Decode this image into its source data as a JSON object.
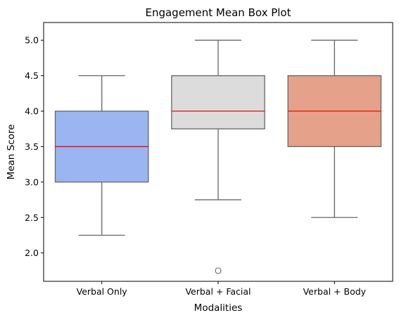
{
  "chart_data": {
    "type": "box",
    "title": "Engagement Mean Box Plot",
    "xlabel": "Modalities",
    "ylabel": "Mean Score",
    "ylim": [
      1.6,
      5.25
    ],
    "yticks": [
      2.0,
      2.5,
      3.0,
      3.5,
      4.0,
      4.5,
      5.0
    ],
    "ytick_labels": [
      "2.0",
      "2.5",
      "3.0",
      "3.5",
      "4.0",
      "4.5",
      "5.0"
    ],
    "grid": false,
    "categories": [
      "Verbal Only",
      "Verbal + Facial",
      "Verbal + Body"
    ],
    "boxes": [
      {
        "category": "Verbal Only",
        "whisker_low": 2.25,
        "q1": 3.0,
        "median": 3.5,
        "q3": 4.0,
        "whisker_high": 4.5,
        "outliers": [],
        "color": "#9ab5f1"
      },
      {
        "category": "Verbal + Facial",
        "whisker_low": 2.75,
        "q1": 3.75,
        "median": 4.0,
        "q3": 4.5,
        "whisker_high": 5.0,
        "outliers": [
          1.75
        ],
        "color": "#dcdcdc"
      },
      {
        "category": "Verbal + Body",
        "whisker_low": 2.5,
        "q1": 3.5,
        "median": 4.0,
        "q3": 4.5,
        "whisker_high": 5.0,
        "outliers": [],
        "color": "#e5a189"
      }
    ],
    "median_color": "#ff0000",
    "line_color": "#666666"
  }
}
